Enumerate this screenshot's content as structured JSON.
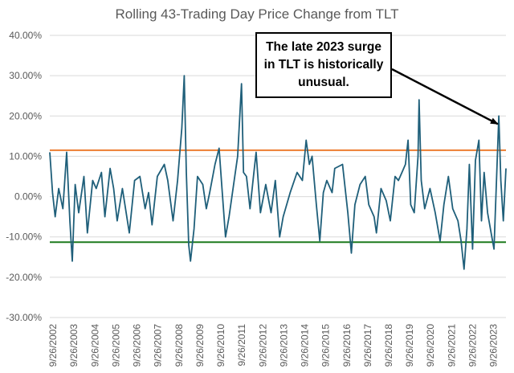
{
  "chart_data": {
    "type": "line",
    "title": "Rolling 43-Trading Day Price Change from TLT",
    "xlabel": "",
    "ylabel": "",
    "ylim": [
      -0.3,
      0.4
    ],
    "y_ticks": [
      "40.00%",
      "30.00%",
      "20.00%",
      "10.00%",
      "0.00%",
      "-10.00%",
      "-20.00%",
      "-30.00%"
    ],
    "y_tick_values": [
      0.4,
      0.3,
      0.2,
      0.1,
      0.0,
      -0.1,
      -0.2,
      -0.3
    ],
    "x_range": [
      "2002-07-30",
      "2024-04-30"
    ],
    "x_ticks": [
      "9/26/2002",
      "9/26/2003",
      "9/26/2004",
      "9/26/2005",
      "9/26/2006",
      "9/26/2007",
      "9/26/2008",
      "9/26/2009",
      "9/26/2010",
      "9/26/2011",
      "9/26/2012",
      "9/26/2013",
      "9/26/2014",
      "9/26/2015",
      "9/26/2016",
      "9/26/2017",
      "9/26/2018",
      "9/26/2019",
      "9/26/2020",
      "9/26/2021",
      "9/26/2022",
      "9/26/2023"
    ],
    "x_tick_dates": [
      "2002-09-26",
      "2003-09-26",
      "2004-09-26",
      "2005-09-26",
      "2006-09-26",
      "2007-09-26",
      "2008-09-26",
      "2009-09-26",
      "2010-09-26",
      "2011-09-26",
      "2012-09-26",
      "2013-09-26",
      "2014-09-26",
      "2015-09-26",
      "2016-09-26",
      "2017-09-26",
      "2018-09-26",
      "2019-09-26",
      "2020-09-26",
      "2021-09-26",
      "2022-09-26",
      "2023-09-26"
    ],
    "series": [
      {
        "color": "#1f5f7a",
        "points": [
          [
            "2002-07-30",
            0.11
          ],
          [
            "2002-09-15",
            0.01
          ],
          [
            "2002-11-01",
            -0.05
          ],
          [
            "2003-01-01",
            0.02
          ],
          [
            "2003-03-15",
            -0.03
          ],
          [
            "2003-05-20",
            0.11
          ],
          [
            "2003-07-15",
            -0.06
          ],
          [
            "2003-08-25",
            -0.16
          ],
          [
            "2003-10-15",
            0.03
          ],
          [
            "2003-12-15",
            -0.04
          ],
          [
            "2004-03-15",
            0.05
          ],
          [
            "2004-05-15",
            -0.09
          ],
          [
            "2004-08-15",
            0.04
          ],
          [
            "2004-10-15",
            0.02
          ],
          [
            "2005-01-15",
            0.06
          ],
          [
            "2005-03-15",
            -0.05
          ],
          [
            "2005-06-15",
            0.07
          ],
          [
            "2005-08-15",
            0.02
          ],
          [
            "2005-10-15",
            -0.06
          ],
          [
            "2006-01-15",
            0.02
          ],
          [
            "2006-05-15",
            -0.09
          ],
          [
            "2006-08-15",
            0.04
          ],
          [
            "2006-11-15",
            0.05
          ],
          [
            "2007-02-15",
            -0.03
          ],
          [
            "2007-04-15",
            0.01
          ],
          [
            "2007-06-15",
            -0.07
          ],
          [
            "2007-09-15",
            0.05
          ],
          [
            "2008-01-15",
            0.08
          ],
          [
            "2008-03-15",
            0.04
          ],
          [
            "2008-06-15",
            -0.06
          ],
          [
            "2008-09-01",
            0.04
          ],
          [
            "2008-11-15",
            0.17
          ],
          [
            "2008-12-26",
            0.3
          ],
          [
            "2009-02-01",
            0.06
          ],
          [
            "2009-03-15",
            -0.12
          ],
          [
            "2009-04-15",
            -0.16
          ],
          [
            "2009-06-15",
            -0.08
          ],
          [
            "2009-08-15",
            0.05
          ],
          [
            "2009-11-15",
            0.03
          ],
          [
            "2010-01-15",
            -0.03
          ],
          [
            "2010-03-15",
            0.01
          ],
          [
            "2010-06-15",
            0.08
          ],
          [
            "2010-08-25",
            0.12
          ],
          [
            "2010-10-15",
            0.02
          ],
          [
            "2010-12-15",
            -0.1
          ],
          [
            "2011-02-15",
            -0.05
          ],
          [
            "2011-05-15",
            0.04
          ],
          [
            "2011-07-15",
            0.1
          ],
          [
            "2011-09-20",
            0.28
          ],
          [
            "2011-10-25",
            0.06
          ],
          [
            "2011-12-15",
            0.05
          ],
          [
            "2012-02-15",
            -0.03
          ],
          [
            "2012-04-15",
            0.05
          ],
          [
            "2012-06-01",
            0.11
          ],
          [
            "2012-08-15",
            -0.04
          ],
          [
            "2012-11-15",
            0.03
          ],
          [
            "2013-02-15",
            -0.04
          ],
          [
            "2013-05-01",
            0.04
          ],
          [
            "2013-07-15",
            -0.1
          ],
          [
            "2013-09-15",
            -0.05
          ],
          [
            "2014-01-15",
            0.01
          ],
          [
            "2014-05-15",
            0.06
          ],
          [
            "2014-08-15",
            0.04
          ],
          [
            "2014-10-20",
            0.14
          ],
          [
            "2014-12-15",
            0.08
          ],
          [
            "2015-02-01",
            0.1
          ],
          [
            "2015-04-15",
            -0.02
          ],
          [
            "2015-06-15",
            -0.11
          ],
          [
            "2015-08-15",
            0.01
          ],
          [
            "2015-10-15",
            0.04
          ],
          [
            "2016-01-15",
            0.01
          ],
          [
            "2016-03-01",
            0.07
          ],
          [
            "2016-07-15",
            0.08
          ],
          [
            "2016-10-15",
            -0.04
          ],
          [
            "2016-12-15",
            -0.14
          ],
          [
            "2017-02-15",
            -0.02
          ],
          [
            "2017-05-15",
            0.03
          ],
          [
            "2017-08-15",
            0.05
          ],
          [
            "2017-10-15",
            -0.02
          ],
          [
            "2018-01-15",
            -0.05
          ],
          [
            "2018-02-25",
            -0.09
          ],
          [
            "2018-05-15",
            0.02
          ],
          [
            "2018-08-15",
            -0.01
          ],
          [
            "2018-10-25",
            -0.06
          ],
          [
            "2019-01-15",
            0.05
          ],
          [
            "2019-03-15",
            0.04
          ],
          [
            "2019-05-15",
            0.06
          ],
          [
            "2019-07-15",
            0.08
          ],
          [
            "2019-08-30",
            0.14
          ],
          [
            "2019-10-15",
            -0.02
          ],
          [
            "2019-12-15",
            -0.04
          ],
          [
            "2020-02-20",
            0.1
          ],
          [
            "2020-03-09",
            0.24
          ],
          [
            "2020-04-15",
            0.04
          ],
          [
            "2020-06-15",
            -0.03
          ],
          [
            "2020-09-15",
            0.02
          ],
          [
            "2020-12-15",
            -0.04
          ],
          [
            "2021-03-10",
            -0.11
          ],
          [
            "2021-05-15",
            -0.02
          ],
          [
            "2021-08-01",
            0.05
          ],
          [
            "2021-10-15",
            -0.03
          ],
          [
            "2022-01-15",
            -0.06
          ],
          [
            "2022-03-10",
            -0.11
          ],
          [
            "2022-05-01",
            -0.18
          ],
          [
            "2022-06-20",
            -0.08
          ],
          [
            "2022-08-01",
            0.08
          ],
          [
            "2022-09-26",
            -0.13
          ],
          [
            "2022-11-15",
            0.09
          ],
          [
            "2023-01-15",
            0.14
          ],
          [
            "2023-03-01",
            -0.06
          ],
          [
            "2023-04-15",
            0.06
          ],
          [
            "2023-06-15",
            -0.04
          ],
          [
            "2023-08-15",
            -0.09
          ],
          [
            "2023-10-05",
            -0.13
          ],
          [
            "2023-12-27",
            0.2
          ],
          [
            "2024-02-01",
            0.04
          ],
          [
            "2024-03-15",
            -0.06
          ],
          [
            "2024-04-30",
            0.07
          ]
        ]
      }
    ],
    "reference_lines": [
      {
        "value": 0.115,
        "color": "#ed7d31"
      },
      {
        "value": -0.113,
        "color": "#1e7b1e"
      }
    ],
    "annotation": {
      "lines": [
        "The late 2023 surge",
        "in TLT is historically",
        "unusual."
      ],
      "arrow_target_date": "2023-12-10",
      "arrow_target_value": 0.18
    },
    "grid": true,
    "gridline_color": "#d9d9d9",
    "axis_text_color": "#595959"
  }
}
